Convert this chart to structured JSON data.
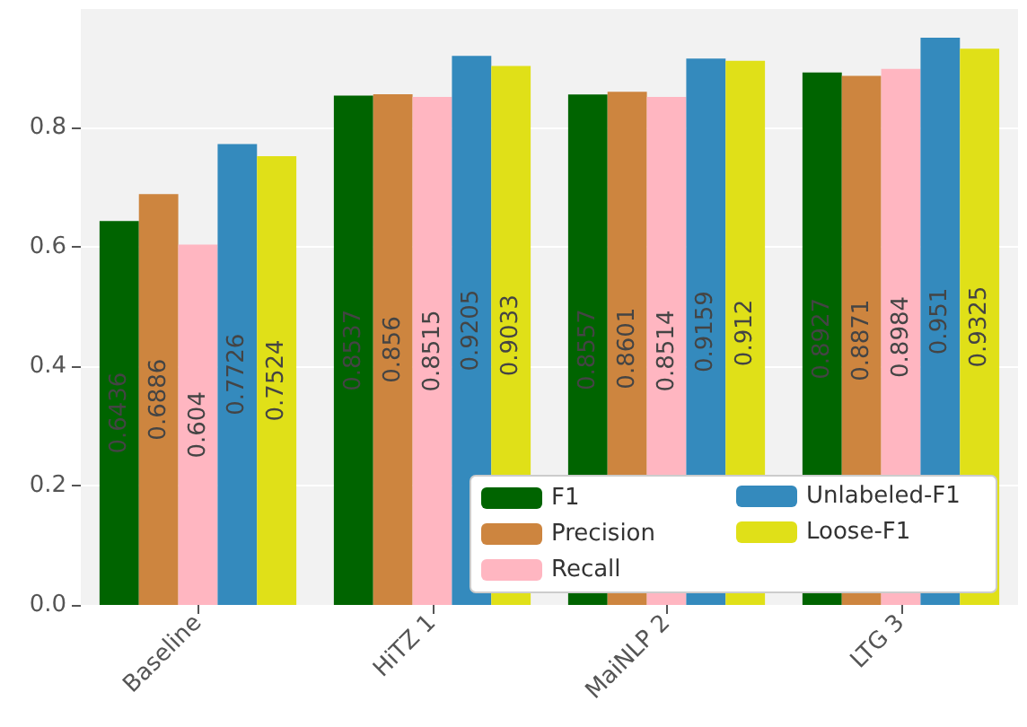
{
  "chart_data": {
    "type": "bar",
    "categories": [
      "Baseline",
      "HiTZ 1",
      "MaiNLP 2",
      "LTG 3"
    ],
    "series": [
      {
        "name": "F1",
        "color": "#006400",
        "values": [
          0.6436,
          0.8537,
          0.8557,
          0.8927
        ]
      },
      {
        "name": "Precision",
        "color": "#cd853f",
        "values": [
          0.6886,
          0.856,
          0.8601,
          0.8871
        ]
      },
      {
        "name": "Recall",
        "color": "#ffb6c1",
        "values": [
          0.604,
          0.8515,
          0.8514,
          0.8984
        ]
      },
      {
        "name": "Unlabeled-F1",
        "color": "#348abd",
        "values": [
          0.7726,
          0.9205,
          0.9159,
          0.951
        ]
      },
      {
        "name": "Loose-F1",
        "color": "#e0e018",
        "values": [
          0.7524,
          0.9033,
          0.912,
          0.9325
        ]
      }
    ],
    "ylim": [
      0,
      0.999
    ],
    "yticks": [
      {
        "value": 0,
        "label": "0.0"
      },
      {
        "value": 0.2,
        "label": "0.2"
      },
      {
        "value": 0.4,
        "label": "0.4"
      },
      {
        "value": 0.6,
        "label": "0.6"
      },
      {
        "value": 0.8,
        "label": "0.8"
      }
    ],
    "grid": "y",
    "legend": "bottom right",
    "data_labels": true
  }
}
